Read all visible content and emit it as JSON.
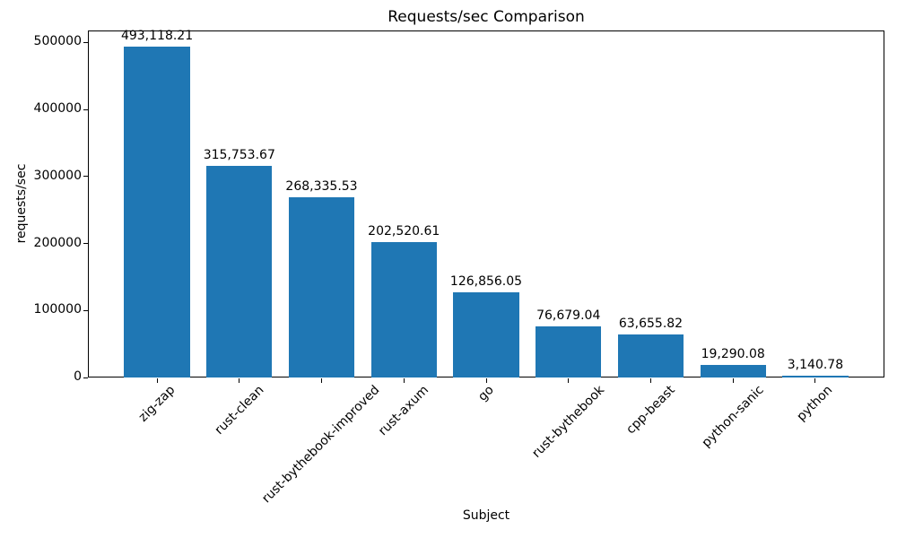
{
  "chart_data": {
    "type": "bar",
    "title": "Requests/sec Comparison",
    "xlabel": "Subject",
    "ylabel": "requests/sec",
    "categories": [
      "zig-zap",
      "rust-clean",
      "rust-bythebook-improved",
      "rust-axum",
      "go",
      "rust-bythebook",
      "cpp-beast",
      "python-sanic",
      "python"
    ],
    "values": [
      493118.21,
      315753.67,
      268335.53,
      202520.61,
      126856.05,
      76679.04,
      63655.82,
      19290.08,
      3140.78
    ],
    "value_labels": [
      "493,118.21",
      "315,753.67",
      "268,335.53",
      "202,520.61",
      "126,856.05",
      "76,679.04",
      "63,655.82",
      "19,290.08",
      "3,140.78"
    ],
    "yticks": [
      0,
      100000,
      200000,
      300000,
      400000,
      500000
    ],
    "ytick_labels": [
      "0",
      "100000",
      "200000",
      "300000",
      "400000",
      "500000"
    ],
    "ylim": [
      0,
      517774
    ],
    "bar_color": "#1f77b4",
    "axis_color": "#000000",
    "grid": false,
    "legend": null,
    "x_tick_rotation_deg": 45
  }
}
